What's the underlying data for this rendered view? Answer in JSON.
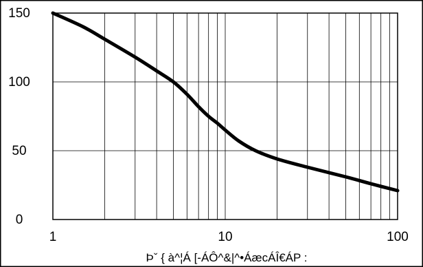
{
  "chart_data": {
    "type": "line",
    "title": "",
    "xlabel": "Þˇ { à^¦Á [-ÁÔ^&|^•ÁæcÁÎ€ÁP :",
    "ylabel": "",
    "x_scale": "log",
    "xlim": [
      1,
      100
    ],
    "ylim": [
      0,
      150
    ],
    "x_ticks": [
      "1",
      "10",
      "100"
    ],
    "y_ticks": [
      "0",
      "50",
      "100",
      "150"
    ],
    "y_tick_values": [
      0,
      50,
      100,
      150
    ],
    "x_tick_values": [
      1,
      10,
      100
    ],
    "grid": true,
    "legend": "none",
    "series": [
      {
        "color": "#000000",
        "x": [
          1,
          1.5,
          2,
          3,
          4,
          5,
          6,
          7,
          8,
          9,
          10,
          12,
          15,
          20,
          30,
          50,
          70,
          100
        ],
        "y": [
          150,
          140,
          131,
          118,
          108,
          100,
          91,
          82,
          75,
          70,
          65,
          57,
          50,
          44,
          38,
          31,
          26,
          21
        ]
      }
    ]
  }
}
